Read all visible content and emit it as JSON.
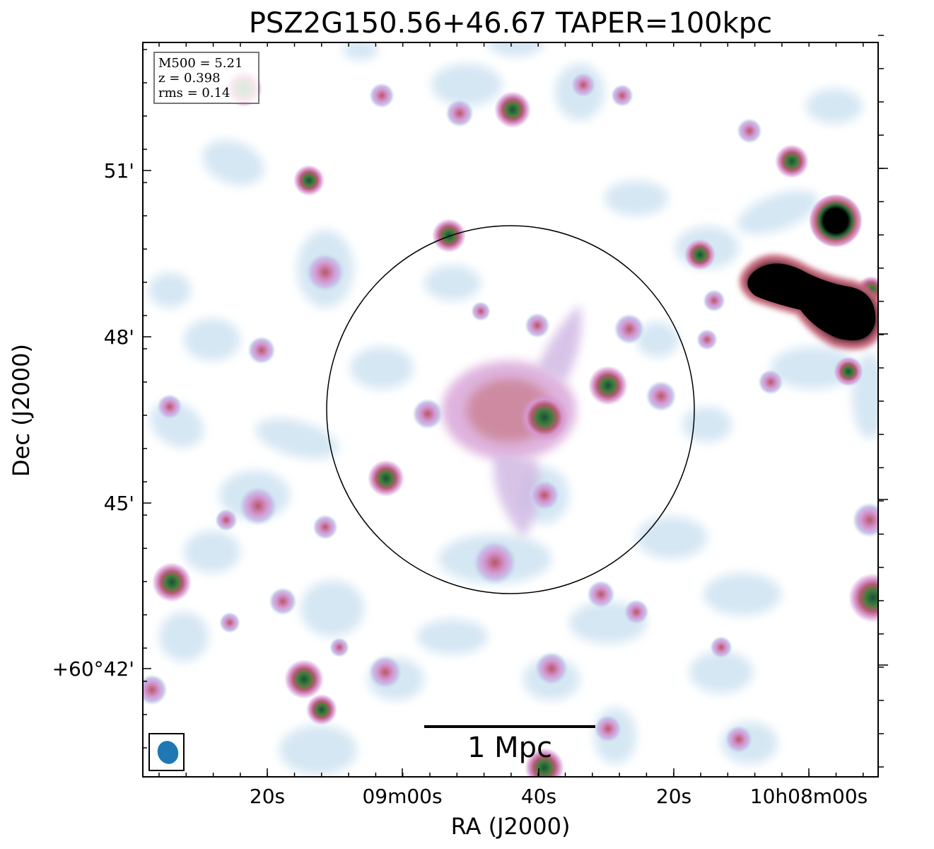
{
  "title": "PSZ2G150.56+46.67 TAPER=100kpc",
  "axes": {
    "xlabel": "RA (J2000)",
    "ylabel": "Dec (J2000)",
    "x_ticks": [
      "20s",
      "09m00s",
      "40s",
      "20s",
      "10h08m00s"
    ],
    "y_ticks": [
      "51'",
      "48'",
      "45'",
      "+60°42'"
    ]
  },
  "info": {
    "mass": "M500 = 5.21",
    "redshift": "z = 0.398",
    "rms": "rms = 0.14"
  },
  "scalebar": {
    "label": "1 Mpc"
  },
  "colors": {
    "beam": "#1f77b4",
    "emission_low": "#c8e6ea",
    "emission_mid": "#c99ad6",
    "emission_high": "#2e7d32",
    "emission_peak": "#000000"
  }
}
